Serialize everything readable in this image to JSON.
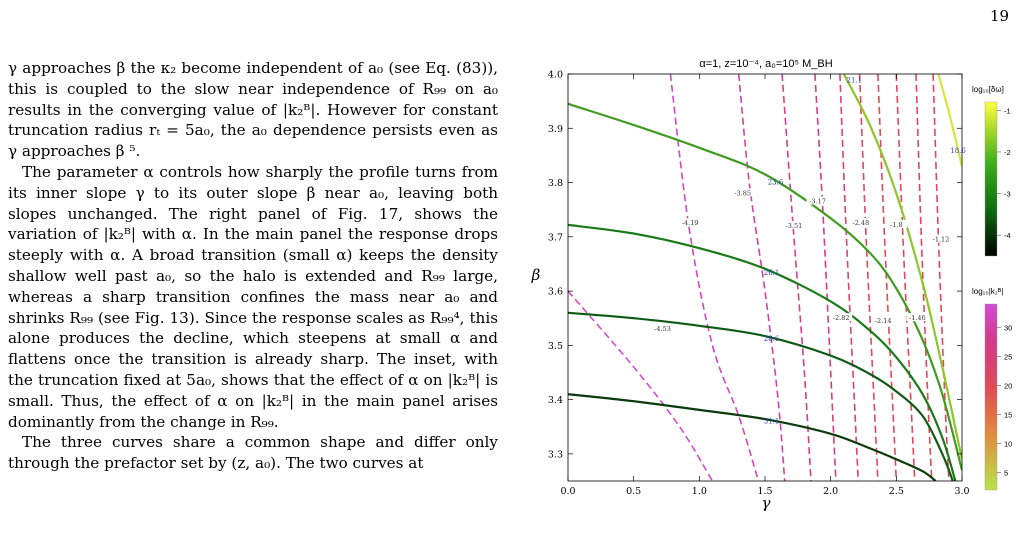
{
  "page": {
    "number": "19"
  },
  "body_text": {
    "p1": "γ approaches β the κ₂ become independent of a₀ (see Eq. (83)), this is coupled to the slow near independence of R₉₉ on a₀ results in the converging value of |k₂ᴮ|. However for constant truncation radius rₜ = 5a₀, the a₀ dependence persists even as γ approaches β ⁵.",
    "p2": "The parameter α controls how sharply the profile turns from its inner slope γ to its outer slope β near a₀, leaving both slopes unchanged. The right panel of Fig. 17, shows the variation of |k₂ᴮ| with α. In the main panel the response drops steeply with α. A broad transition (small α) keeps the density shallow well past a₀, so the halo is extended and R₉₉ large, whereas a sharp transition confines the mass near a₀ and shrinks R₉₉ (see Fig. 13). Since the response scales as R₉₉⁴, this alone produces the decline, which steepens at small α and flattens once the transition is already sharp. The inset, with the truncation fixed at 5a₀, shows that the effect of α on |k₂ᴮ| is small. Thus, the effect of α on |k₂ᴮ| in the main panel arises dominantly from the change in R₉₉.",
    "p3": "The three curves share a common shape and differ only through the prefactor set by (z, a₀). The two curves at"
  },
  "chart_data": {
    "type": "contour",
    "title": "α=1, z=10⁻⁴, a₀=10⁵ M_BH",
    "xlabel": "γ",
    "ylabel": "β",
    "xlim": [
      0.0,
      3.0
    ],
    "ylim": [
      3.25,
      4.0
    ],
    "xticks": [
      "0.0",
      "0.5",
      "1.0",
      "1.5",
      "2.0",
      "2.5",
      "3.0"
    ],
    "yticks": [
      "3.3",
      "3.4",
      "3.5",
      "3.6",
      "3.7",
      "3.8",
      "3.9",
      "4.0"
    ],
    "grid": false,
    "solid_contours": [
      {
        "label": "31.1",
        "points": [
          [
            0,
            3.41
          ],
          [
            0.5,
            3.397
          ],
          [
            1.0,
            3.381
          ],
          [
            1.5,
            3.364
          ],
          [
            2.0,
            3.337
          ],
          [
            2.3,
            3.31
          ],
          [
            2.5,
            3.29
          ],
          [
            2.7,
            3.268
          ],
          [
            2.8,
            3.25
          ]
        ]
      },
      {
        "label": "28.6",
        "points": [
          [
            0,
            3.56
          ],
          [
            0.5,
            3.55
          ],
          [
            1.0,
            3.536
          ],
          [
            1.5,
            3.517
          ],
          [
            2.0,
            3.481
          ],
          [
            2.3,
            3.447
          ],
          [
            2.5,
            3.415
          ],
          [
            2.7,
            3.37
          ],
          [
            2.85,
            3.3
          ],
          [
            2.93,
            3.25
          ]
        ]
      },
      {
        "label": "26.1",
        "points": [
          [
            0,
            3.722
          ],
          [
            0.5,
            3.706
          ],
          [
            1.0,
            3.679
          ],
          [
            1.5,
            3.641
          ],
          [
            2.0,
            3.581
          ],
          [
            2.3,
            3.527
          ],
          [
            2.5,
            3.478
          ],
          [
            2.7,
            3.41
          ],
          [
            2.85,
            3.33
          ],
          [
            2.95,
            3.25
          ]
        ]
      },
      {
        "label": "23.6",
        "points": [
          [
            0,
            3.945
          ],
          [
            0.5,
            3.906
          ],
          [
            1.0,
            3.864
          ],
          [
            1.5,
            3.815
          ],
          [
            2.0,
            3.734
          ],
          [
            2.3,
            3.67
          ],
          [
            2.5,
            3.605
          ],
          [
            2.7,
            3.51
          ],
          [
            2.85,
            3.41
          ],
          [
            3.0,
            3.27
          ]
        ]
      },
      {
        "label": "21.1",
        "points": [
          [
            2.1,
            4.0
          ],
          [
            2.3,
            3.905
          ],
          [
            2.5,
            3.78
          ],
          [
            2.7,
            3.615
          ],
          [
            2.85,
            3.46
          ],
          [
            3.0,
            3.29
          ]
        ]
      },
      {
        "label": "18.6",
        "points": [
          [
            2.82,
            4.0
          ],
          [
            2.9,
            3.93
          ],
          [
            3.0,
            3.83
          ]
        ]
      }
    ],
    "dashed_contours": [
      {
        "label": "-4.53",
        "points": [
          [
            0,
            3.6
          ],
          [
            0.5,
            3.46
          ],
          [
            0.85,
            3.35
          ],
          [
            1.1,
            3.25
          ]
        ]
      },
      {
        "label": "-4.19",
        "points": [
          [
            0.78,
            4.0
          ],
          [
            0.92,
            3.72
          ],
          [
            1.1,
            3.5
          ],
          [
            1.3,
            3.37
          ],
          [
            1.45,
            3.25
          ]
        ]
      },
      {
        "label": "-3.85",
        "points": [
          [
            1.3,
            4.0
          ],
          [
            1.38,
            3.8
          ],
          [
            1.5,
            3.6
          ],
          [
            1.6,
            3.4
          ],
          [
            1.65,
            3.25
          ]
        ]
      },
      {
        "label": "-3.51",
        "points": [
          [
            1.63,
            4.0
          ],
          [
            1.72,
            3.7
          ],
          [
            1.8,
            3.45
          ],
          [
            1.85,
            3.25
          ]
        ]
      },
      {
        "label": "-3.17",
        "points": [
          [
            1.88,
            4.0
          ],
          [
            1.94,
            3.75
          ],
          [
            2.0,
            3.45
          ],
          [
            2.04,
            3.25
          ]
        ]
      },
      {
        "label": "-2.82",
        "points": [
          [
            2.07,
            4.0
          ],
          [
            2.12,
            3.7
          ],
          [
            2.18,
            3.4
          ],
          [
            2.21,
            3.25
          ]
        ]
      },
      {
        "label": "-2.48",
        "points": [
          [
            2.22,
            4.0
          ],
          [
            2.27,
            3.7
          ],
          [
            2.33,
            3.4
          ],
          [
            2.36,
            3.25
          ]
        ]
      },
      {
        "label": "-2.14",
        "points": [
          [
            2.36,
            4.0
          ],
          [
            2.41,
            3.7
          ],
          [
            2.47,
            3.4
          ],
          [
            2.5,
            3.25
          ]
        ]
      },
      {
        "label": "-1.8",
        "points": [
          [
            2.5,
            4.0
          ],
          [
            2.55,
            3.7
          ],
          [
            2.61,
            3.4
          ],
          [
            2.64,
            3.25
          ]
        ]
      },
      {
        "label": "-1.46",
        "points": [
          [
            2.65,
            4.0
          ],
          [
            2.69,
            3.7
          ],
          [
            2.74,
            3.4
          ],
          [
            2.77,
            3.25
          ]
        ]
      },
      {
        "label": "-1.12",
        "points": [
          [
            2.78,
            4.0
          ],
          [
            2.82,
            3.7
          ],
          [
            2.87,
            3.4
          ],
          [
            2.9,
            3.25
          ]
        ]
      }
    ],
    "colorbars": [
      {
        "title": "log₁₀[δω]",
        "ticks": [
          "-1",
          "-2",
          "-3",
          "-4"
        ],
        "range": [
          -4.5,
          -0.8
        ],
        "colors": [
          "#000000",
          "#0e6b10",
          "#3cae1c",
          "#a8d82a",
          "#ffff3a"
        ]
      },
      {
        "title": "log₁₀|k₂ᴮ|",
        "ticks": [
          "30",
          "25",
          "20",
          "15",
          "10",
          "5"
        ],
        "range": [
          2,
          34
        ],
        "colors": [
          "#b8e44a",
          "#e08b3e",
          "#e04a55",
          "#d43a8a",
          "#d24bd2"
        ]
      }
    ]
  }
}
